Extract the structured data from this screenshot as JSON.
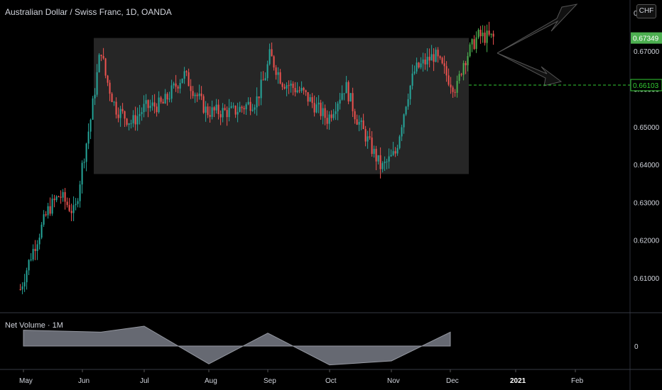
{
  "header": {
    "title": "Australian Dollar / Swiss Franc, 1D, OANDA",
    "currency_button": "CHF"
  },
  "indicator": {
    "title": "Net Volume · 1M",
    "zero_label": "0"
  },
  "colors": {
    "up": "#26a69a",
    "up_bright": "#4caf50",
    "down": "#ef5350",
    "box": "#262626",
    "highlight": "#33cc33",
    "axis_text": "#d1d4dc",
    "volume_fill": "#787b86"
  },
  "chart_data": {
    "type": "candlestick",
    "symbol": "AUDCHF",
    "yaxis_ticks": [
      "0.61000",
      "0.62000",
      "0.63000",
      "0.64000",
      "0.65000",
      "0.66000",
      "0.67000"
    ],
    "ylim": [
      0.6,
      0.682
    ],
    "xaxis_ticks": [
      "May",
      "Jun",
      "Jul",
      "Aug",
      "Sep",
      "Oct",
      "Nov",
      "Dec",
      "2021",
      "Feb"
    ],
    "current_price": "0.67349",
    "level_price": "0.66103",
    "top_clipped_labels": [
      "0",
      "0"
    ],
    "range_box": {
      "from": "Jun",
      "to": "Dec",
      "high": 0.6735,
      "low": 0.6375
    },
    "projection_arrows": [
      "up",
      "down"
    ],
    "close_path": [
      [
        "Apr-27",
        0.607
      ],
      [
        "May-05",
        0.616
      ],
      [
        "May-14",
        0.628
      ],
      [
        "May-20",
        0.632
      ],
      [
        "May-28",
        0.627
      ],
      [
        "Jun-01",
        0.64
      ],
      [
        "Jun-05",
        0.652
      ],
      [
        "Jun-10",
        0.671
      ],
      [
        "Jun-12",
        0.664
      ],
      [
        "Jun-17",
        0.655
      ],
      [
        "Jun-25",
        0.651
      ],
      [
        "Jul-01",
        0.655
      ],
      [
        "Jul-10",
        0.656
      ],
      [
        "Jul-20",
        0.664
      ],
      [
        "Jul-31",
        0.654
      ],
      [
        "Aug-14",
        0.654
      ],
      [
        "Aug-26",
        0.657
      ],
      [
        "Aug-31",
        0.664
      ],
      [
        "Sep-02",
        0.669
      ],
      [
        "Sep-08",
        0.662
      ],
      [
        "Sep-18",
        0.659
      ],
      [
        "Sep-30",
        0.652
      ],
      [
        "Oct-09",
        0.661
      ],
      [
        "Oct-14",
        0.653
      ],
      [
        "Oct-27",
        0.639
      ],
      [
        "Nov-03",
        0.643
      ],
      [
        "Nov-09",
        0.658
      ],
      [
        "Nov-13",
        0.665
      ],
      [
        "Nov-23",
        0.669
      ],
      [
        "Dec-01",
        0.662
      ],
      [
        "Dec-04",
        0.66
      ],
      [
        "Dec-07",
        0.667
      ],
      [
        "Dec-14",
        0.674
      ],
      [
        "Dec-22",
        0.6735
      ]
    ],
    "net_volume": {
      "zero": 0,
      "points": [
        [
          "May-01",
          0.8
        ],
        [
          "Jun-10",
          0.7
        ],
        [
          "Jul-01",
          1.0
        ],
        [
          "Aug-01",
          -0.9
        ],
        [
          "Sep-01",
          0.65
        ],
        [
          "Oct-01",
          -0.95
        ],
        [
          "Nov-01",
          -0.75
        ],
        [
          "Dec-01",
          0.7
        ]
      ]
    }
  }
}
